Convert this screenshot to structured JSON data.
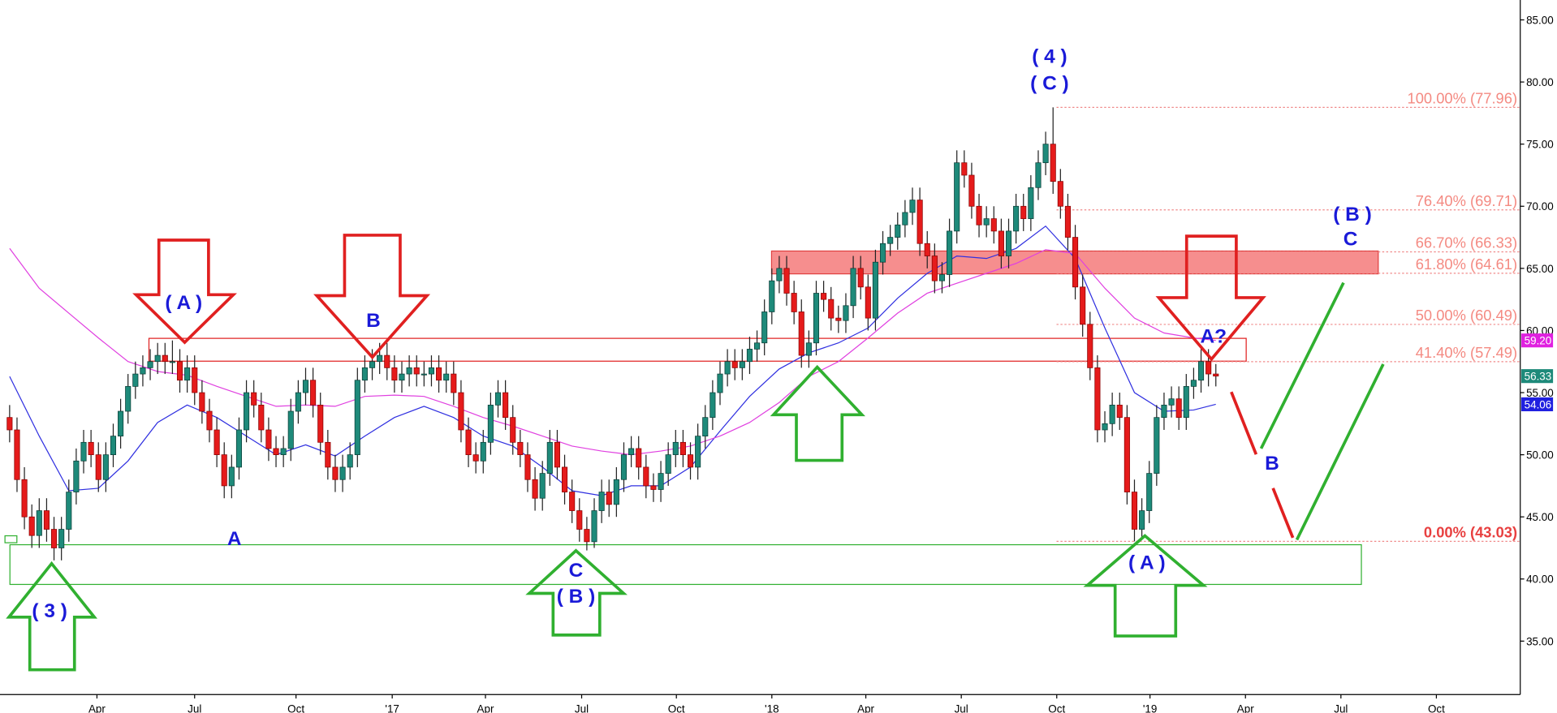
{
  "chart_data": {
    "type": "candlestick",
    "up_color": "#1e8a7a",
    "down_color": "#e51b1b",
    "ylim": [
      30.7,
      86.6
    ],
    "yticks": [
      {
        "value": 35,
        "label": "35.00"
      },
      {
        "value": 40,
        "label": "40.00"
      },
      {
        "value": 45,
        "label": "45.00"
      },
      {
        "value": 50,
        "label": "50.00"
      },
      {
        "value": 55,
        "label": "55.00"
      },
      {
        "value": 60,
        "label": "60.00"
      },
      {
        "value": 65,
        "label": "65.00"
      },
      {
        "value": 70,
        "label": "70.00"
      },
      {
        "value": 75,
        "label": "75.00"
      },
      {
        "value": 80,
        "label": "80.00"
      },
      {
        "value": 85,
        "label": "85.00"
      }
    ],
    "xlim": [
      -1.3,
      204
    ],
    "xticks": [
      {
        "value": 11.8,
        "label": "Apr"
      },
      {
        "value": 25,
        "label": "Jul"
      },
      {
        "value": 38.7,
        "label": "Oct"
      },
      {
        "value": 51.7,
        "label": "'17"
      },
      {
        "value": 64.3,
        "label": "Apr"
      },
      {
        "value": 77.3,
        "label": "Jul"
      },
      {
        "value": 90.1,
        "label": "Oct"
      },
      {
        "value": 103,
        "label": "'18"
      },
      {
        "value": 115.7,
        "label": "Apr"
      },
      {
        "value": 128.6,
        "label": "Jul"
      },
      {
        "value": 141.5,
        "label": "Oct"
      },
      {
        "value": 154.1,
        "label": "'19"
      },
      {
        "value": 167,
        "label": "Apr"
      },
      {
        "value": 179.9,
        "label": "Jul"
      },
      {
        "value": 192.8,
        "label": "Oct"
      }
    ],
    "ohlc": [
      [
        53,
        54,
        51,
        52
      ],
      [
        52,
        53,
        47,
        48
      ],
      [
        48,
        49,
        44,
        45
      ],
      [
        45,
        46,
        42.5,
        43.5
      ],
      [
        43.5,
        46.5,
        42.5,
        45.5
      ],
      [
        45.5,
        46.5,
        43,
        44
      ],
      [
        44,
        45,
        41.5,
        42.5
      ],
      [
        42.5,
        45,
        41.5,
        44
      ],
      [
        44,
        48,
        43,
        47
      ],
      [
        47,
        50.5,
        46,
        49.5
      ],
      [
        49.5,
        52,
        48.5,
        51
      ],
      [
        51,
        52,
        49,
        50
      ],
      [
        50,
        51,
        47,
        48
      ],
      [
        48,
        51,
        47,
        50
      ],
      [
        50,
        52.5,
        49,
        51.5
      ],
      [
        51.5,
        54.5,
        50.5,
        53.5
      ],
      [
        53.5,
        56.5,
        52.5,
        55.5
      ],
      [
        55.5,
        57.5,
        54.5,
        56.5
      ],
      [
        56.5,
        58,
        55.5,
        57
      ],
      [
        57,
        58.5,
        56,
        57.5
      ],
      [
        57.5,
        59,
        56.5,
        58
      ],
      [
        58,
        59,
        56.5,
        57.5
      ],
      [
        57.5,
        59.2,
        56.5,
        57.5
      ],
      [
        57.5,
        58.5,
        55,
        56
      ],
      [
        56,
        58,
        55,
        57
      ],
      [
        57,
        58,
        54,
        55
      ],
      [
        55,
        56,
        52.5,
        53.5
      ],
      [
        53.5,
        54.5,
        51,
        52
      ],
      [
        52,
        53,
        49,
        50
      ],
      [
        50,
        51,
        46.5,
        47.5
      ],
      [
        47.5,
        50,
        46.5,
        49
      ],
      [
        49,
        53,
        48,
        52
      ],
      [
        52,
        56,
        51,
        55
      ],
      [
        55,
        56,
        53,
        54
      ],
      [
        54,
        55,
        51,
        52
      ],
      [
        52,
        53,
        49.5,
        50.5
      ],
      [
        50.5,
        51.5,
        49,
        50
      ],
      [
        50,
        51.5,
        49,
        50.5
      ],
      [
        50.5,
        54.5,
        49.5,
        53.5
      ],
      [
        53.5,
        56,
        52.5,
        55
      ],
      [
        55,
        57,
        54,
        56
      ],
      [
        56,
        57,
        53,
        54
      ],
      [
        54,
        55,
        50,
        51
      ],
      [
        51,
        52,
        48,
        49
      ],
      [
        49,
        50,
        47,
        48
      ],
      [
        48,
        50,
        47,
        49
      ],
      [
        49,
        51,
        48,
        50
      ],
      [
        50,
        57,
        49,
        56
      ],
      [
        56,
        58,
        55,
        57
      ],
      [
        57,
        58.5,
        56,
        57.5
      ],
      [
        57.5,
        59,
        56.5,
        58
      ],
      [
        58,
        59,
        56,
        57
      ],
      [
        57,
        58,
        55,
        56
      ],
      [
        56,
        57.5,
        55,
        56.5
      ],
      [
        56.5,
        58,
        55.5,
        57
      ],
      [
        57,
        58,
        55.5,
        56.5
      ],
      [
        56.5,
        57.5,
        55.5,
        56.5
      ],
      [
        56.5,
        58,
        55.5,
        57
      ],
      [
        57,
        58,
        55,
        56
      ],
      [
        56,
        57.5,
        55,
        56.5
      ],
      [
        56.5,
        57.5,
        54,
        55
      ],
      [
        55,
        56,
        51,
        52
      ],
      [
        52,
        53,
        49,
        50
      ],
      [
        50,
        51,
        48.5,
        49.5
      ],
      [
        49.5,
        52,
        48.5,
        51
      ],
      [
        51,
        55,
        50,
        54
      ],
      [
        54,
        56,
        53,
        55
      ],
      [
        55,
        56,
        52,
        53
      ],
      [
        53,
        54,
        50,
        51
      ],
      [
        51,
        52,
        49,
        50
      ],
      [
        50,
        51,
        47,
        48
      ],
      [
        48,
        49,
        45.5,
        46.5
      ],
      [
        46.5,
        49.5,
        45.5,
        48.5
      ],
      [
        48.5,
        52,
        47.5,
        51
      ],
      [
        51,
        52,
        48,
        49
      ],
      [
        49,
        50,
        46,
        47
      ],
      [
        47,
        48,
        44.5,
        45.5
      ],
      [
        45.5,
        46.5,
        43,
        44
      ],
      [
        44,
        45,
        42.3,
        43
      ],
      [
        43,
        46.5,
        42.5,
        45.5
      ],
      [
        45.5,
        48,
        44.5,
        47
      ],
      [
        47,
        48,
        45,
        46
      ],
      [
        46,
        49,
        45,
        48
      ],
      [
        48,
        51,
        47,
        50
      ],
      [
        50,
        51.5,
        49,
        50.5
      ],
      [
        50.5,
        51.5,
        48,
        49
      ],
      [
        49,
        50,
        46.5,
        47.5
      ],
      [
        47.5,
        48.5,
        46.2,
        47.2
      ],
      [
        47.2,
        49.5,
        46.2,
        48.5
      ],
      [
        48.5,
        51,
        47.5,
        50
      ],
      [
        50,
        52,
        49,
        51
      ],
      [
        51,
        52,
        49,
        50
      ],
      [
        50,
        51,
        48,
        49
      ],
      [
        49,
        52.5,
        48,
        51.5
      ],
      [
        51.5,
        54,
        50.5,
        53
      ],
      [
        53,
        56,
        52,
        55
      ],
      [
        55,
        57.5,
        54,
        56.5
      ],
      [
        56.5,
        58.5,
        55.5,
        57.5
      ],
      [
        57.5,
        58.5,
        56,
        57
      ],
      [
        57,
        58.5,
        56,
        57.5
      ],
      [
        57.5,
        59.5,
        56.5,
        58.5
      ],
      [
        58.5,
        60,
        57.5,
        59
      ],
      [
        59,
        62.5,
        58,
        61.5
      ],
      [
        61.5,
        65,
        60.5,
        64
      ],
      [
        64,
        66,
        63,
        65
      ],
      [
        65,
        66,
        62,
        63
      ],
      [
        63,
        64,
        60.5,
        61.5
      ],
      [
        61.5,
        62.5,
        57,
        58
      ],
      [
        58,
        60,
        57,
        59
      ],
      [
        59,
        64,
        58,
        63
      ],
      [
        63,
        64,
        61.5,
        62.5
      ],
      [
        62.5,
        63.5,
        60,
        61
      ],
      [
        61,
        62,
        59.8,
        60.8
      ],
      [
        60.8,
        63,
        59.8,
        62
      ],
      [
        62,
        66,
        61,
        65
      ],
      [
        65,
        66,
        62.5,
        63.5
      ],
      [
        63.5,
        64.5,
        60,
        61
      ],
      [
        61,
        66.5,
        60,
        65.5
      ],
      [
        65.5,
        68,
        64.5,
        67
      ],
      [
        67,
        68.5,
        66,
        67.5
      ],
      [
        67.5,
        69.5,
        66.5,
        68.5
      ],
      [
        68.5,
        70.5,
        67.5,
        69.5
      ],
      [
        69.5,
        71.5,
        68.5,
        70.5
      ],
      [
        70.5,
        71.5,
        66,
        67
      ],
      [
        67,
        68,
        65,
        66
      ],
      [
        66,
        67,
        63,
        64
      ],
      [
        64,
        65.5,
        63,
        64.5
      ],
      [
        64.5,
        69,
        63.5,
        68
      ],
      [
        68,
        74.5,
        67,
        73.5
      ],
      [
        73.5,
        74.5,
        71.5,
        72.5
      ],
      [
        72.5,
        73.5,
        69,
        70
      ],
      [
        70,
        71,
        67.5,
        68.5
      ],
      [
        68.5,
        70,
        67.5,
        69
      ],
      [
        69,
        70,
        67,
        68
      ],
      [
        68,
        69,
        65,
        66
      ],
      [
        66,
        69,
        65,
        68
      ],
      [
        68,
        71,
        67,
        70
      ],
      [
        70,
        71,
        68,
        69
      ],
      [
        69,
        72.5,
        68,
        71.5
      ],
      [
        71.5,
        74.5,
        70.5,
        73.5
      ],
      [
        73.5,
        76,
        72.5,
        75
      ],
      [
        75,
        77.96,
        71,
        72
      ],
      [
        72,
        73,
        69,
        70
      ],
      [
        70,
        71,
        66.5,
        67.5
      ],
      [
        67.5,
        68.5,
        62.5,
        63.5
      ],
      [
        63.5,
        64.5,
        59.5,
        60.5
      ],
      [
        60.5,
        61.5,
        56,
        57
      ],
      [
        57,
        58,
        51,
        52
      ],
      [
        52,
        53.5,
        51,
        52.5
      ],
      [
        52.5,
        55,
        51.5,
        54
      ],
      [
        54,
        55,
        52,
        53
      ],
      [
        53,
        54,
        46,
        47
      ],
      [
        47,
        48,
        43.03,
        44
      ],
      [
        44,
        46.5,
        43.2,
        45.5
      ],
      [
        45.5,
        49.5,
        44.5,
        48.5
      ],
      [
        48.5,
        54,
        47.5,
        53
      ],
      [
        53,
        55,
        52,
        54
      ],
      [
        54,
        55.5,
        53,
        54.5
      ],
      [
        54.5,
        55.5,
        52,
        53
      ],
      [
        53,
        56.5,
        52,
        55.5
      ],
      [
        55.5,
        57,
        54.5,
        56
      ],
      [
        56,
        58.5,
        55,
        57.5
      ],
      [
        57.5,
        58.5,
        55.5,
        56.5
      ],
      [
        56.5,
        57.3,
        55.5,
        56.33
      ]
    ],
    "moving_averages": [
      {
        "color": "#3030e0",
        "x": [
          0,
          4,
          8,
          12,
          16,
          20,
          24,
          28,
          32,
          36,
          40,
          44,
          48,
          52,
          56,
          60,
          64,
          68,
          72,
          76,
          80,
          84,
          88,
          92,
          96,
          100,
          104,
          108,
          112,
          116,
          120,
          124,
          128,
          132,
          136,
          140,
          144,
          148,
          152,
          156,
          160,
          163
        ],
        "values": [
          56.3,
          51.5,
          47.1,
          47.3,
          49.5,
          52.6,
          54,
          53,
          51.5,
          50,
          50.8,
          49.9,
          51.5,
          53,
          53.9,
          53,
          51.5,
          50.7,
          49,
          47.1,
          46.7,
          47.5,
          47.5,
          49,
          51.9,
          54.7,
          56.9,
          58.2,
          59,
          60.2,
          62.6,
          64.6,
          66,
          65.8,
          66.6,
          68.4,
          65.8,
          60.2,
          55,
          53.5,
          53.6,
          54.06
        ]
      },
      {
        "color": "#e040e0",
        "x": [
          0,
          4,
          8,
          12,
          16,
          20,
          24,
          28,
          32,
          36,
          40,
          44,
          48,
          52,
          56,
          60,
          64,
          68,
          72,
          76,
          80,
          84,
          88,
          92,
          96,
          100,
          104,
          108,
          112,
          116,
          120,
          124,
          128,
          132,
          136,
          140,
          144,
          148,
          152,
          156,
          160,
          163
        ],
        "values": [
          66.6,
          63.4,
          61.4,
          59.4,
          57.5,
          56.7,
          56.4,
          55.5,
          54.7,
          53.9,
          54,
          53.9,
          54.7,
          54.8,
          54.7,
          53.9,
          53,
          52.3,
          51.5,
          50.7,
          50.3,
          50,
          50.3,
          50.7,
          51.5,
          52.6,
          54.2,
          56.3,
          57.5,
          59.4,
          61.4,
          63,
          63.8,
          64.6,
          65.4,
          66.5,
          66.2,
          63.4,
          61,
          59.8,
          59.4,
          59.2
        ]
      }
    ],
    "price_tags": [
      {
        "value": 59.2,
        "label": "59.20",
        "color": "#e020e0"
      },
      {
        "value": 56.33,
        "label": "56.33",
        "color": "#1e8a7a"
      },
      {
        "value": 54.06,
        "label": "54.06",
        "color": "#2020e0"
      }
    ],
    "fib_levels": [
      {
        "value": 77.96,
        "label": "100.00% (77.96)"
      },
      {
        "value": 69.71,
        "label": "76.40% (69.71)"
      },
      {
        "value": 66.33,
        "label": "66.70% (66.33)"
      },
      {
        "value": 64.61,
        "label": "61.80% (64.61)"
      },
      {
        "value": 60.49,
        "label": "50.00% (60.49)"
      },
      {
        "value": 57.49,
        "label": "41.40% (57.49)"
      },
      {
        "value": 43.03,
        "label": "0.00% (43.03)"
      }
    ],
    "annotations": [
      "( 4 )",
      "( C )",
      "( A )",
      "B",
      "A",
      "( 3 )",
      "C",
      "( B )",
      "( A )",
      "A?",
      "B",
      "( B )",
      "C"
    ]
  }
}
